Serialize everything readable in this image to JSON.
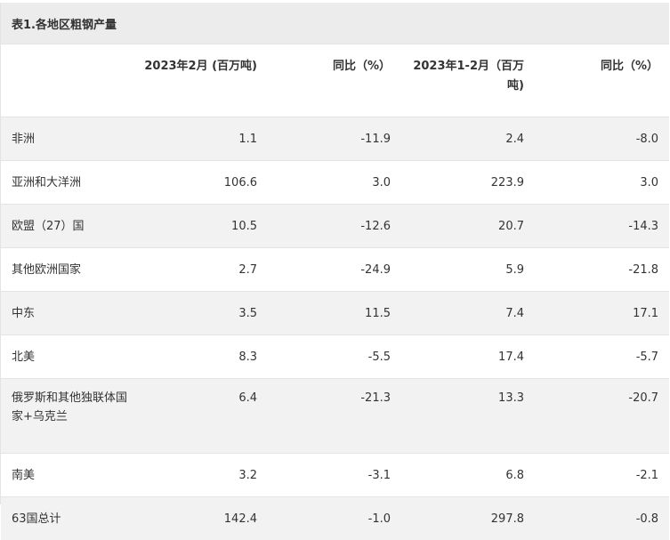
{
  "table": {
    "caption": "表1.各地区粗钢产量",
    "headers": [
      "",
      "2023年2月 (百万吨)",
      "同比（%）",
      "2023年1-2月（百万吨)",
      "同比（%）"
    ],
    "rows": [
      {
        "region": "非洲",
        "feb": "1.1",
        "feb_yoy": "-11.9",
        "janfeb": "2.4",
        "janfeb_yoy": "-8.0"
      },
      {
        "region": "亚洲和大洋洲",
        "feb": "106.6",
        "feb_yoy": "3.0",
        "janfeb": "223.9",
        "janfeb_yoy": "3.0"
      },
      {
        "region": "欧盟（27）国",
        "feb": "10.5",
        "feb_yoy": "-12.6",
        "janfeb": "20.7",
        "janfeb_yoy": "-14.3"
      },
      {
        "region": "其他欧洲国家",
        "feb": "2.7",
        "feb_yoy": "-24.9",
        "janfeb": "5.9",
        "janfeb_yoy": "-21.8"
      },
      {
        "region": "中东",
        "feb": "3.5",
        "feb_yoy": "11.5",
        "janfeb": "7.4",
        "janfeb_yoy": "17.1"
      },
      {
        "region": "北美",
        "feb": "8.3",
        "feb_yoy": "-5.5",
        "janfeb": "17.4",
        "janfeb_yoy": "-5.7"
      },
      {
        "region": "俄罗斯和其他独联体国家+乌克兰",
        "feb": "6.4",
        "feb_yoy": "-21.3",
        "janfeb": "13.3",
        "janfeb_yoy": "-20.7"
      },
      {
        "region": "南美",
        "feb": "3.2",
        "feb_yoy": "-3.1",
        "janfeb": "6.8",
        "janfeb_yoy": "-2.1"
      },
      {
        "region": "63国总计",
        "feb": "142.4",
        "feb_yoy": "-1.0",
        "janfeb": "297.8",
        "janfeb_yoy": "-0.8"
      }
    ]
  }
}
